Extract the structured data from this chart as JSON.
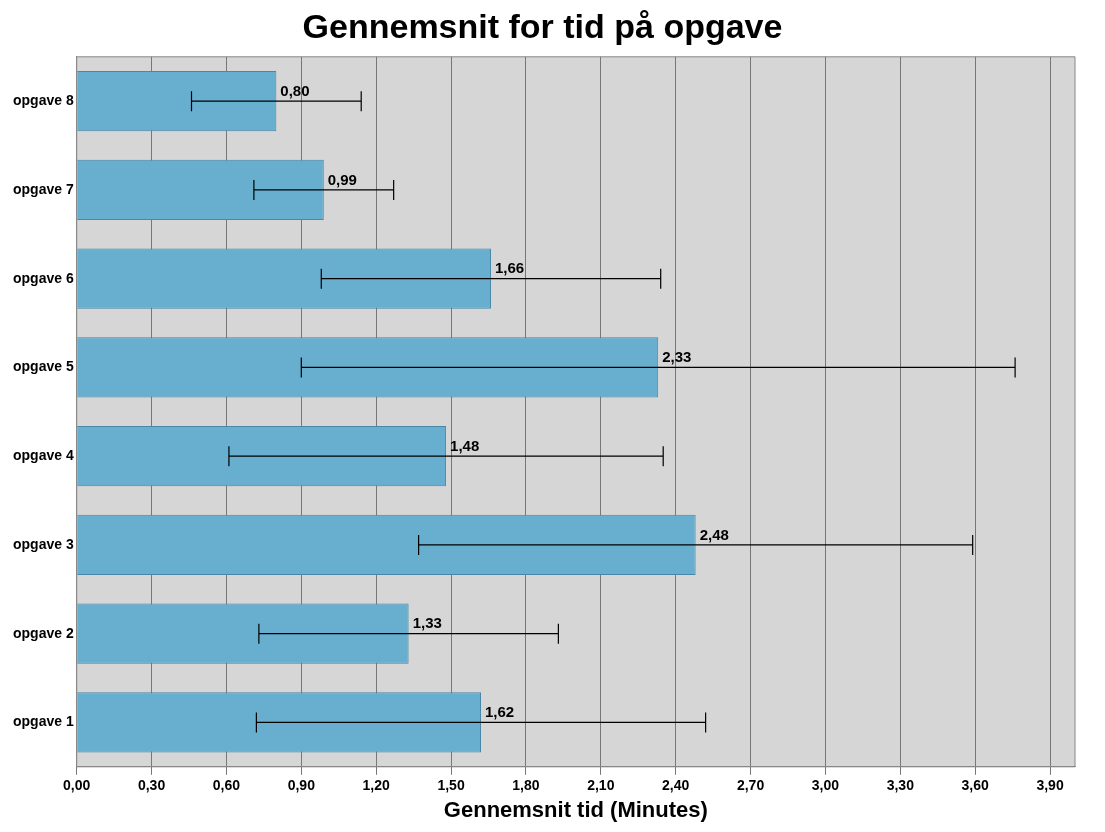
{
  "chart_data": {
    "type": "bar",
    "orientation": "horizontal",
    "title": "Gennemsnit for tid på opgave",
    "xlabel": "Gennemsnit tid (Minutes)",
    "categories": [
      "opgave 8",
      "opgave 7",
      "opgave 6",
      "opgave 5",
      "opgave 4",
      "opgave 3",
      "opgave 2",
      "opgave 1"
    ],
    "values": [
      0.8,
      0.99,
      1.66,
      2.33,
      1.48,
      2.48,
      1.33,
      1.62
    ],
    "errors": [
      0.34,
      0.28,
      0.68,
      1.43,
      0.87,
      1.11,
      0.6,
      0.9
    ],
    "value_labels": [
      "0,80",
      "0,99",
      "1,66",
      "2,33",
      "1,48",
      "2,48",
      "1,33",
      "1,62"
    ],
    "color": "#67aecf",
    "xlim": [
      0,
      4.0
    ],
    "xticks": [
      {
        "value": 0,
        "label": "0,00"
      },
      {
        "value": 0.3,
        "label": "0,30"
      },
      {
        "value": 0.6,
        "label": "0,60"
      },
      {
        "value": 0.9,
        "label": "0,90"
      },
      {
        "value": 1.2,
        "label": "1,20"
      },
      {
        "value": 1.5,
        "label": "1,50"
      },
      {
        "value": 1.8,
        "label": "1,80"
      },
      {
        "value": 2.1,
        "label": "2,10"
      },
      {
        "value": 2.4,
        "label": "2,40"
      },
      {
        "value": 2.7,
        "label": "2,70"
      },
      {
        "value": 3.0,
        "label": "3,00"
      },
      {
        "value": 3.3,
        "label": "3,30"
      },
      {
        "value": 3.6,
        "label": "3,60"
      },
      {
        "value": 3.9,
        "label": "3,90"
      }
    ],
    "grid": "x",
    "legend": false
  }
}
